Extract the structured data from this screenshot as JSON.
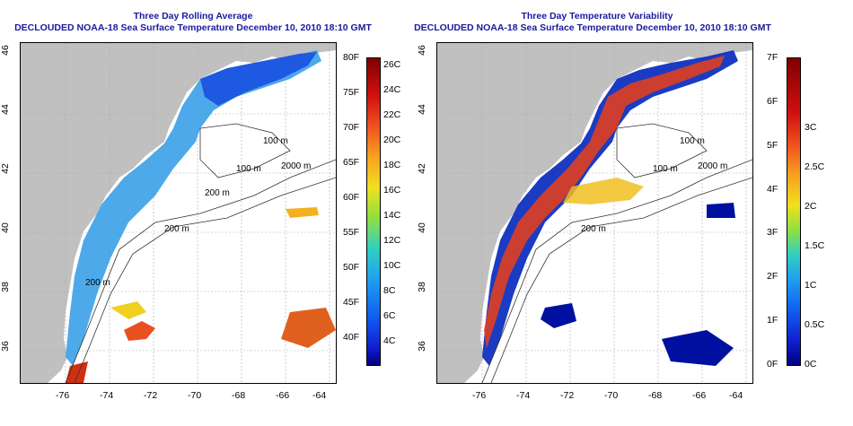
{
  "left_panel": {
    "title_line1": "Three Day Rolling Average",
    "title_line2": "DECLOUDED NOAA-18 Sea Surface Temperature December 10, 2010 18:10 GMT",
    "x_ticks": [
      "-76",
      "-74",
      "-72",
      "-70",
      "-68",
      "-66",
      "-64"
    ],
    "y_ticks": [
      "36",
      "38",
      "40",
      "42",
      "44",
      "46"
    ],
    "contour_labels": [
      "100 m",
      "100 m",
      "2000 m",
      "200 m",
      "200 m",
      "200 m"
    ],
    "colorbar": {
      "f_labels": [
        "80F",
        "75F",
        "70F",
        "65F",
        "60F",
        "55F",
        "50F",
        "45F",
        "40F"
      ],
      "c_labels": [
        "26C",
        "24C",
        "22C",
        "20C",
        "18C",
        "16C",
        "14C",
        "12C",
        "10C",
        "8C",
        "6C",
        "4C"
      ]
    }
  },
  "right_panel": {
    "title_line1": "Three Day Temperature Variability",
    "title_line2": "DECLOUDED NOAA-18 Sea Surface Temperature December 10, 2010 18:10 GMT",
    "x_ticks": [
      "-76",
      "-74",
      "-72",
      "-70",
      "-68",
      "-66",
      "-64"
    ],
    "y_ticks": [
      "36",
      "38",
      "40",
      "42",
      "44",
      "46"
    ],
    "contour_labels": [
      "100 m",
      "100 m",
      "2000 m",
      "200 m"
    ],
    "colorbar": {
      "f_labels": [
        "7F",
        "6F",
        "5F",
        "4F",
        "3F",
        "2F",
        "1F",
        "0F"
      ],
      "c_labels": [
        "3C",
        "2.5C",
        "2C",
        "1.5C",
        "1C",
        "0.5C",
        "0C"
      ]
    }
  },
  "colors": {
    "title": "#1a1aa0",
    "land": "#c0c0c0",
    "ocean": "#ffffff"
  }
}
